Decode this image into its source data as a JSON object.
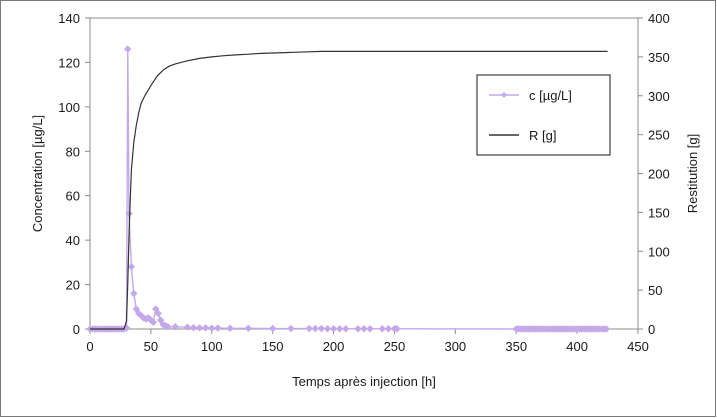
{
  "chart_data": {
    "type": "line",
    "xlabel": "Temps après injection [h]",
    "ylabel_left": "Concentration [µg/L]",
    "ylabel_right": "Restitution [g]",
    "xlim": [
      0,
      450
    ],
    "ylim_left": [
      0,
      140
    ],
    "ylim_right": [
      0,
      400
    ],
    "x_ticks": [
      0,
      50,
      100,
      150,
      200,
      250,
      300,
      350,
      400,
      450
    ],
    "y_left_ticks": [
      0,
      20,
      40,
      60,
      80,
      100,
      120,
      140
    ],
    "y_right_ticks": [
      0,
      50,
      100,
      150,
      200,
      250,
      300,
      350,
      400
    ],
    "grid": false,
    "legend_placement": "top-right",
    "series": [
      {
        "name": "c [µg/L]",
        "axis": "left",
        "color": "#c4a8ea",
        "marker": "diamond",
        "x": [
          0,
          2,
          4,
          6,
          8,
          10,
          12,
          14,
          16,
          18,
          20,
          22,
          24,
          26,
          28,
          30,
          31,
          32,
          34,
          36,
          38,
          40,
          42,
          44,
          46,
          48,
          50,
          52,
          54,
          56,
          58,
          60,
          62,
          64,
          70,
          80,
          85,
          90,
          95,
          100,
          105,
          115,
          130,
          150,
          165,
          180,
          185,
          190,
          195,
          200,
          205,
          210,
          220,
          225,
          230,
          240,
          245,
          250,
          252,
          350,
          352,
          354,
          356,
          358,
          360,
          362,
          364,
          366,
          368,
          370,
          372,
          374,
          376,
          378,
          380,
          382,
          384,
          386,
          388,
          390,
          392,
          394,
          396,
          398,
          400,
          402,
          404,
          406,
          408,
          410,
          412,
          414,
          416,
          418,
          420,
          422,
          424
        ],
        "values": [
          0,
          0,
          0,
          0,
          0,
          0,
          0,
          0,
          0,
          0,
          0,
          0,
          0,
          0,
          0,
          0.5,
          126,
          52,
          28,
          16,
          9,
          7,
          6,
          5,
          4.5,
          5,
          4,
          3,
          9,
          7,
          4,
          2,
          1.5,
          1,
          1,
          0.8,
          0.6,
          0.5,
          0.5,
          0.4,
          0.4,
          0.3,
          0.3,
          0.2,
          0.2,
          0.2,
          0.2,
          0.2,
          0.1,
          0.1,
          0.1,
          0.1,
          0.1,
          0.1,
          0.1,
          0.1,
          0.1,
          0.1,
          0.1,
          0,
          0,
          0,
          0,
          0,
          0,
          0,
          0,
          0,
          0,
          0,
          0,
          0,
          0,
          0,
          0,
          0,
          0,
          0,
          0,
          0,
          0,
          0,
          0,
          0,
          0,
          0,
          0,
          0,
          0,
          0,
          0,
          0,
          0,
          0,
          0,
          0,
          0
        ]
      },
      {
        "name": "R [g]",
        "axis": "right",
        "color": "#333333",
        "marker": "none",
        "x": [
          0,
          10,
          20,
          28,
          30,
          31,
          32,
          33,
          34,
          36,
          38,
          40,
          42,
          45,
          50,
          55,
          60,
          65,
          70,
          80,
          90,
          100,
          110,
          120,
          130,
          140,
          150,
          160,
          170,
          180,
          190,
          200,
          250,
          300,
          350,
          400,
          425
        ],
        "values": [
          0,
          0,
          0,
          0,
          10,
          60,
          120,
          165,
          205,
          240,
          262,
          278,
          290,
          300,
          313,
          325,
          333,
          338,
          341,
          345,
          348,
          350,
          351.5,
          352.5,
          353.5,
          354.5,
          355,
          355.5,
          356,
          356.5,
          357,
          357,
          357,
          357,
          357,
          357,
          357
        ]
      }
    ]
  }
}
